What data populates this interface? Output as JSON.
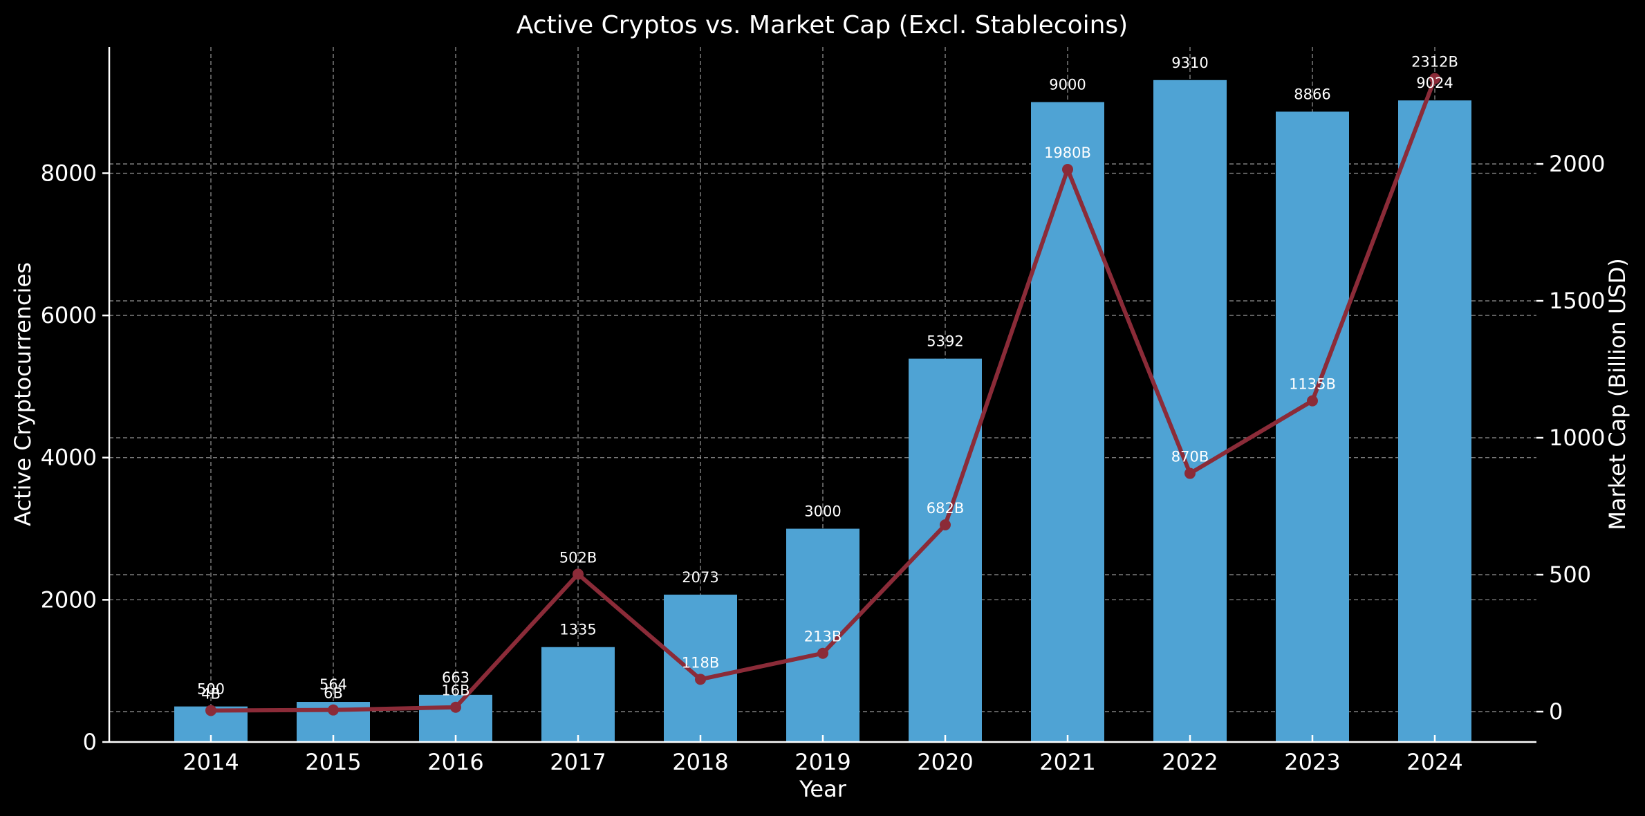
{
  "chart_data": {
    "type": "bar",
    "title": "Active Cryptos vs. Market Cap (Excl. Stablecoins)",
    "xlabel": "Year",
    "ylabel": "Active Cryptocurrencies",
    "y2label": "Market Cap (Billion USD)",
    "categories": [
      "2014",
      "2015",
      "2016",
      "2017",
      "2018",
      "2019",
      "2020",
      "2021",
      "2022",
      "2023",
      "2024"
    ],
    "series": [
      {
        "type": "bar",
        "axis": "left",
        "color": "#4fa3d4",
        "values": [
          500,
          564,
          663,
          1335,
          2073,
          3000,
          5392,
          9000,
          9310,
          8866,
          9024
        ],
        "labels": [
          "500",
          "564",
          "663",
          "1335",
          "2073",
          "3000",
          "5392",
          "9000",
          "9310",
          "8866",
          "9024"
        ]
      },
      {
        "type": "line",
        "axis": "right",
        "color": "#8b2b38",
        "values": [
          4,
          6,
          16,
          502,
          118,
          213,
          682,
          1980,
          870,
          1135,
          2312
        ],
        "labels": [
          "4B",
          "6B",
          "16B",
          "502B",
          "118B",
          "213B",
          "682B",
          "1980B",
          "870B",
          "1135B",
          "2312B"
        ]
      }
    ],
    "ylim": [
      0,
      9775
    ],
    "y2lim": [
      -111,
      2427
    ],
    "yticks": [
      "0",
      "2000",
      "4000",
      "6000",
      "8000"
    ],
    "y2ticks": [
      "0",
      "500",
      "1000",
      "1500",
      "2000"
    ],
    "grid": true
  }
}
